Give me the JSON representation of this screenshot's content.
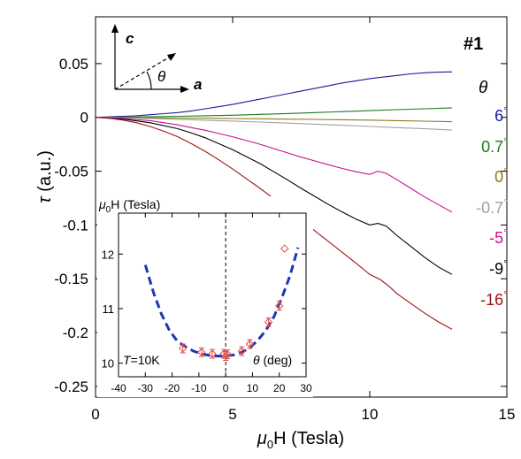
{
  "chart_data": [
    {
      "type": "line",
      "panel": "main",
      "sample_label": "#1",
      "legend_title": "θ",
      "xlabel": {
        "prefix": "μ",
        "sub": "0",
        "main": "H (Tesla)"
      },
      "ylabel": {
        "main": "τ",
        "unit": " (a.u.)"
      },
      "xlim": [
        0,
        15
      ],
      "ylim": [
        -0.26,
        0.0935
      ],
      "xticks": [
        0,
        5,
        10,
        15
      ],
      "xtick_labels": [
        "0",
        "5",
        "10",
        "15"
      ],
      "yticks": [
        0.05,
        0,
        -0.05,
        -0.1,
        -0.15,
        -0.2,
        -0.25
      ],
      "ytick_labels": [
        "0.05",
        "0",
        "-0.05",
        "-0.1",
        "-0.15",
        "-0.2",
        "-0.25"
      ],
      "inset_axes_text": {
        "c": "c",
        "a": "a",
        "theta": "θ"
      },
      "series": [
        {
          "name": "6°",
          "label": "6",
          "color": "#1a1a9c",
          "x": [
            0,
            0.5,
            1,
            1.5,
            2,
            2.5,
            3,
            3.5,
            4,
            4.5,
            5,
            5.5,
            6,
            6.5,
            7,
            7.5,
            8,
            8.5,
            9,
            9.5,
            10,
            10.5,
            11,
            11.5,
            12,
            12.5,
            13
          ],
          "y": [
            0,
            0.0005,
            0.001,
            0.0015,
            0.0025,
            0.0035,
            0.0045,
            0.006,
            0.008,
            0.01,
            0.012,
            0.0145,
            0.017,
            0.0195,
            0.022,
            0.0245,
            0.027,
            0.0295,
            0.032,
            0.034,
            0.036,
            0.0375,
            0.039,
            0.0405,
            0.0415,
            0.042,
            0.0423
          ]
        },
        {
          "name": "0.7°",
          "label": "0.7",
          "color": "#1a7a1a",
          "x": [
            0,
            1,
            2,
            3,
            4,
            5,
            6,
            7,
            8,
            9,
            10,
            11,
            12,
            13
          ],
          "y": [
            0,
            0.0002,
            0.0005,
            0.001,
            0.0015,
            0.002,
            0.0028,
            0.0036,
            0.0045,
            0.0054,
            0.0063,
            0.0072,
            0.008,
            0.0088
          ]
        },
        {
          "name": "0°",
          "label": "0",
          "color": "#8a7a1a",
          "x": [
            0,
            1,
            2,
            3,
            4,
            5,
            6,
            7,
            8,
            9,
            10,
            11,
            12,
            13
          ],
          "y": [
            0,
            -0.0002,
            -0.0004,
            -0.0006,
            -0.0008,
            -0.001,
            -0.0013,
            -0.0016,
            -0.0019,
            -0.0022,
            -0.0025,
            -0.003,
            -0.0035,
            -0.004
          ]
        },
        {
          "name": "-0.7°",
          "label": "-0.7",
          "color": "#a0a0a0",
          "x": [
            0,
            1,
            2,
            3,
            4,
            5,
            6,
            7,
            8,
            9,
            10,
            11,
            12,
            13
          ],
          "y": [
            0,
            -0.0005,
            -0.001,
            -0.0018,
            -0.0026,
            -0.0034,
            -0.0043,
            -0.0053,
            -0.0063,
            -0.0073,
            -0.0084,
            -0.0095,
            -0.0106,
            -0.0117
          ]
        },
        {
          "name": "-5°",
          "label": "-5",
          "color": "#c8148c",
          "x": [
            0,
            1,
            2,
            3,
            3.5,
            4,
            4.5,
            5,
            5.5,
            6,
            6.5,
            7,
            7.5,
            8,
            8.5,
            9,
            9.5,
            10,
            10.3,
            10.6,
            11,
            11.5,
            12,
            12.5,
            13
          ],
          "y": [
            0,
            -0.001,
            -0.003,
            -0.007,
            -0.0095,
            -0.012,
            -0.015,
            -0.018,
            -0.0215,
            -0.025,
            -0.029,
            -0.033,
            -0.037,
            -0.0405,
            -0.044,
            -0.0475,
            -0.0505,
            -0.053,
            -0.05,
            -0.052,
            -0.058,
            -0.066,
            -0.074,
            -0.081,
            -0.088
          ]
        },
        {
          "name": "-9°",
          "label": "-9",
          "color": "#000000",
          "x": [
            0,
            1,
            2,
            3,
            3.5,
            4,
            4.5,
            5,
            5.5,
            6,
            6.5,
            7,
            7.5,
            8,
            8.5,
            9,
            9.5,
            10,
            10.3,
            10.6,
            11,
            11.5,
            12,
            12.5,
            13
          ],
          "y": [
            0,
            -0.0015,
            -0.005,
            -0.0105,
            -0.0145,
            -0.019,
            -0.0245,
            -0.03,
            -0.0365,
            -0.043,
            -0.0505,
            -0.058,
            -0.066,
            -0.0735,
            -0.081,
            -0.088,
            -0.0945,
            -0.1,
            -0.0985,
            -0.101,
            -0.11,
            -0.12,
            -0.13,
            -0.139,
            -0.146
          ]
        },
        {
          "name": "-16°",
          "label": "-16",
          "color": "#a01414",
          "x": [
            0,
            0.5,
            1,
            1.5,
            2,
            2.5,
            3,
            3.5,
            4,
            4.5,
            5,
            5.5,
            6,
            6.5,
            7,
            7.5,
            8,
            8.5,
            9,
            9.5,
            10,
            10.4,
            10.7,
            11,
            11.5,
            12,
            12.5,
            13
          ],
          "y": [
            0,
            -0.0008,
            -0.0025,
            -0.005,
            -0.0085,
            -0.013,
            -0.018,
            -0.0245,
            -0.0315,
            -0.0395,
            -0.048,
            -0.057,
            -0.066,
            -0.0755,
            -0.0855,
            -0.0955,
            -0.1055,
            -0.1155,
            -0.1255,
            -0.1355,
            -0.146,
            -0.151,
            -0.157,
            -0.164,
            -0.173,
            -0.182,
            -0.19,
            -0.197
          ]
        }
      ]
    },
    {
      "type": "scatter",
      "panel": "inset",
      "ylabel": {
        "prefix": "μ",
        "sub": "0",
        "main": "H (Tesla)"
      },
      "xlabel": {
        "main": "θ",
        "unit": " (deg)"
      },
      "annotation": {
        "prefix": "T",
        "main": "=10K"
      },
      "xlim": [
        -40,
        30
      ],
      "ylim": [
        9.75,
        12.75
      ],
      "xticks": [
        -40,
        -30,
        -20,
        -10,
        0,
        10,
        20,
        30
      ],
      "xtick_labels": [
        "-40",
        "-30",
        "-20",
        "-10",
        "0",
        "10",
        "20",
        "30"
      ],
      "yticks": [
        10,
        11,
        12
      ],
      "ytick_labels": [
        "10",
        "11",
        "12"
      ],
      "points": {
        "color": "#e24a4a",
        "x": [
          -16,
          -9,
          -5,
          -0.7,
          0,
          0.7,
          6,
          9,
          16,
          20
        ],
        "y": [
          10.27,
          10.2,
          10.17,
          10.17,
          10.13,
          10.16,
          10.22,
          10.35,
          10.75,
          11.05
        ],
        "err": [
          0.08,
          0.08,
          0.08,
          0.08,
          0.08,
          0.08,
          0.08,
          0.08,
          0.08,
          0.08
        ]
      },
      "extra_point": {
        "x": 22,
        "y": 12.1
      },
      "fit": {
        "color": "#1a36b4",
        "x": [
          -30,
          -27,
          -24,
          -21,
          -18,
          -15,
          -12,
          -9,
          -6,
          -3,
          0,
          3,
          6,
          9,
          12,
          15,
          18,
          21,
          24,
          27
        ],
        "y": [
          11.8,
          11.3,
          10.9,
          10.6,
          10.4,
          10.3,
          10.22,
          10.17,
          10.14,
          10.13,
          10.13,
          10.15,
          10.2,
          10.28,
          10.42,
          10.6,
          10.85,
          11.2,
          11.6,
          12.12
        ]
      }
    }
  ]
}
